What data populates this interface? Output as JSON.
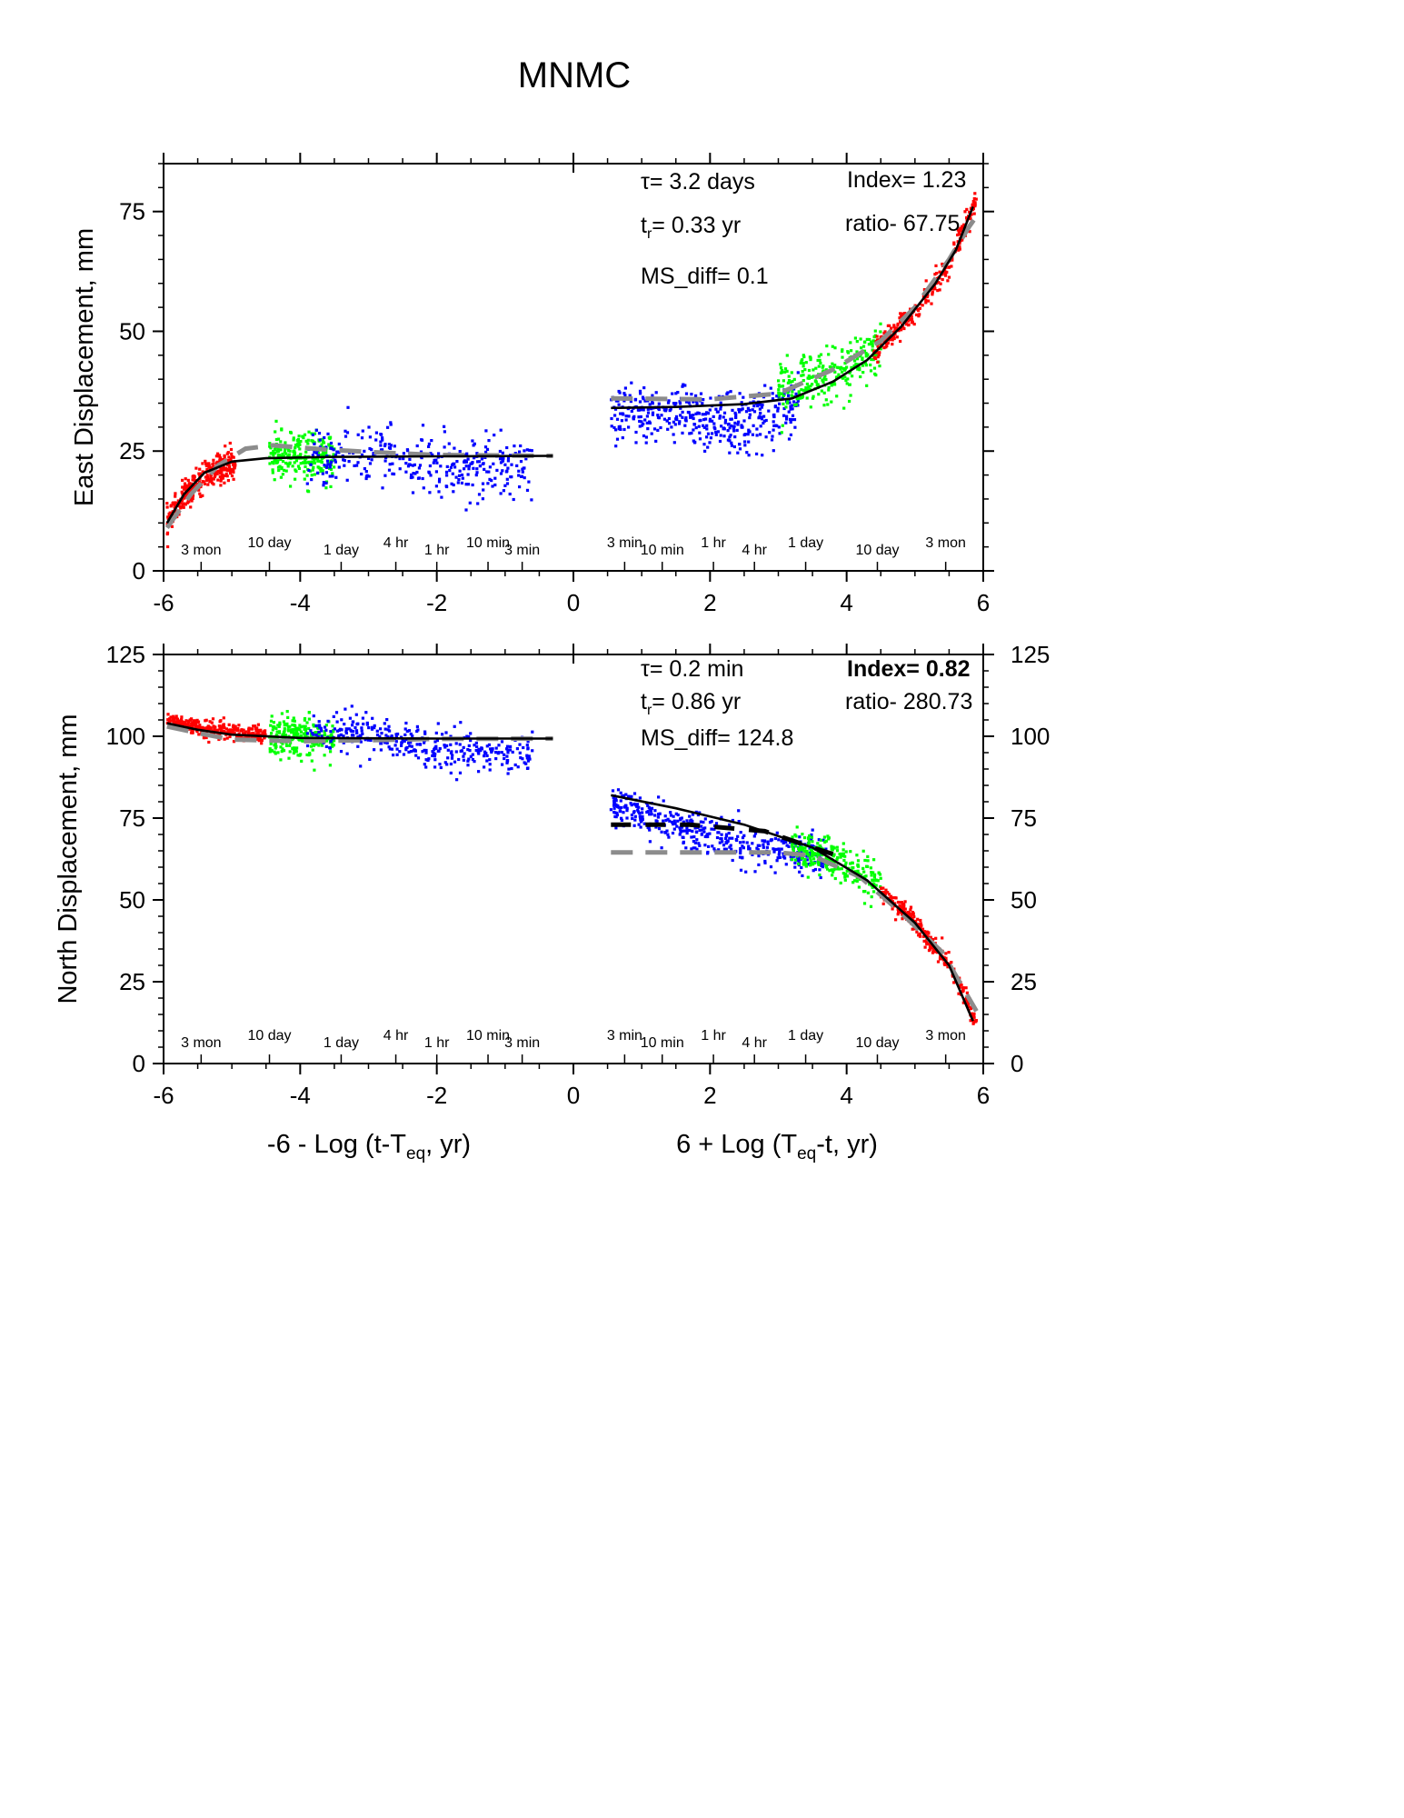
{
  "title": "MNMC",
  "colors": {
    "early": "#ff0000",
    "mid": "#00ff00",
    "late": "#0000ff",
    "fit": "#000000",
    "model": "#8c8c8c"
  },
  "time_labels_left": [
    {
      "x": -5.45,
      "text": "3 mon"
    },
    {
      "x": -4.45,
      "text": "10 day"
    },
    {
      "x": -3.4,
      "text": "1 day"
    },
    {
      "x": -2.6,
      "text": "4 hr"
    },
    {
      "x": -2.0,
      "text": "1 hr"
    },
    {
      "x": -1.25,
      "text": "10 min"
    },
    {
      "x": -0.75,
      "text": "3 min"
    }
  ],
  "time_labels_right": [
    {
      "x": 0.75,
      "text": "3 min"
    },
    {
      "x": 1.3,
      "text": "10 min"
    },
    {
      "x": 2.05,
      "text": "1 hr"
    },
    {
      "x": 2.65,
      "text": "4 hr"
    },
    {
      "x": 3.4,
      "text": "1 day"
    },
    {
      "x": 4.45,
      "text": "10 day"
    },
    {
      "x": 5.45,
      "text": "3 mon"
    }
  ],
  "chart_data": [
    {
      "type": "scatter",
      "panel": "east",
      "ylabel": "East Displacement, mm",
      "xlim": [
        -6,
        6
      ],
      "ylim": [
        0,
        85
      ],
      "xticks": [
        -6,
        -4,
        -2,
        0,
        2,
        4,
        6
      ],
      "yticks": [
        0,
        25,
        50,
        75
      ],
      "annotations": {
        "tau": "τ= 3.2 days",
        "tr": "t",
        "tr_sub": "r",
        "tr_value": "= 0.33 yr",
        "ms_diff": "MS_diff= 0.1",
        "index": "Index= 1.23",
        "ratio": "ratio- 67.75"
      },
      "fit_left": [
        [
          -5.95,
          10
        ],
        [
          -5.7,
          16
        ],
        [
          -5.4,
          20.5
        ],
        [
          -5.0,
          22.8
        ],
        [
          -4.5,
          23.5
        ],
        [
          -3.5,
          23.8
        ],
        [
          -2.0,
          23.9
        ],
        [
          -0.3,
          24
        ]
      ],
      "fit_right": [
        [
          0.55,
          34
        ],
        [
          1.5,
          34.2
        ],
        [
          2.5,
          34.8
        ],
        [
          3.2,
          36
        ],
        [
          3.8,
          39.5
        ],
        [
          4.3,
          44
        ],
        [
          4.8,
          51
        ],
        [
          5.3,
          60
        ],
        [
          5.6,
          67
        ],
        [
          5.85,
          76
        ]
      ],
      "model_left": [
        [
          -5.95,
          9
        ],
        [
          -5.6,
          16
        ],
        [
          -5.2,
          22
        ],
        [
          -4.8,
          25.5
        ],
        [
          -4.4,
          26.2
        ],
        [
          -3.8,
          25.5
        ],
        [
          -3.0,
          24.8
        ],
        [
          -2.0,
          24.2
        ],
        [
          -0.3,
          24
        ]
      ],
      "model_right": [
        [
          0.55,
          36
        ],
        [
          2.0,
          35.8
        ],
        [
          3.0,
          37
        ],
        [
          3.8,
          42
        ],
        [
          4.5,
          48
        ],
        [
          5.0,
          55
        ],
        [
          5.5,
          65
        ],
        [
          5.8,
          72
        ],
        [
          5.95,
          75
        ]
      ],
      "scatter_clusters": [
        {
          "side": "left",
          "group": "early",
          "x": [
            -5.95,
            -4.95
          ],
          "center": [
            [
              -5.95,
              10
            ],
            [
              -5.7,
              15.5
            ],
            [
              -5.4,
              20
            ],
            [
              -5.0,
              22.5
            ]
          ],
          "spread": 1.5,
          "count": 320
        },
        {
          "side": "left",
          "group": "mid",
          "x": [
            -4.45,
            -3.5
          ],
          "center": [
            [
              -4.45,
              23.5
            ],
            [
              -3.5,
              24
            ]
          ],
          "spread": 2.5,
          "count": 240
        },
        {
          "side": "left",
          "group": "late",
          "x": [
            -3.9,
            -0.6
          ],
          "center": [
            [
              -3.9,
              24
            ],
            [
              -3.0,
              24
            ],
            [
              -2.0,
              22
            ],
            [
              -0.6,
              21.5
            ]
          ],
          "spread": 3.2,
          "count": 340
        },
        {
          "side": "right",
          "group": "late",
          "x": [
            0.55,
            3.3
          ],
          "center": [
            [
              0.55,
              33
            ],
            [
              1.5,
              32.5
            ],
            [
              2.4,
              30
            ],
            [
              3.3,
              35
            ]
          ],
          "spread": 3.0,
          "count": 420
        },
        {
          "side": "right",
          "group": "mid",
          "x": [
            3.0,
            4.5
          ],
          "center": [
            [
              3.0,
              38
            ],
            [
              3.8,
              41
            ],
            [
              4.5,
              46
            ]
          ],
          "spread": 2.8,
          "count": 260
        },
        {
          "side": "right",
          "group": "early",
          "x": [
            4.4,
            5.9
          ],
          "center": [
            [
              4.4,
              46
            ],
            [
              5.0,
              54
            ],
            [
              5.5,
              64
            ],
            [
              5.9,
              77
            ]
          ],
          "spread": 1.3,
          "count": 260
        }
      ]
    },
    {
      "type": "scatter",
      "panel": "north",
      "ylabel": "North Displacement, mm",
      "xlim": [
        -6,
        6
      ],
      "ylim": [
        0,
        125
      ],
      "xticks": [
        -6,
        -4,
        -2,
        0,
        2,
        4,
        6
      ],
      "yticks": [
        0,
        25,
        50,
        75,
        100,
        125
      ],
      "xlabel_left": "-6 - Log (t-T",
      "xlabel_left_sub": "eq",
      "xlabel_left_end": ", yr)",
      "xlabel_right": "6 + Log (T",
      "xlabel_right_sub": "eq",
      "xlabel_right_end": "-t, yr)",
      "annotations": {
        "tau": "τ= 0.2 min",
        "tr": "t",
        "tr_sub": "r",
        "tr_value": "= 0.86 yr",
        "ms_diff": "MS_diff= 124.8",
        "index": "Index= 0.82",
        "ratio": "ratio- 280.73"
      },
      "fit_left": [
        [
          -5.95,
          104
        ],
        [
          -5.5,
          102
        ],
        [
          -5.0,
          100.5
        ],
        [
          -4.0,
          99.5
        ],
        [
          -3.0,
          99.4
        ],
        [
          -2.0,
          99.3
        ],
        [
          -0.3,
          99.3
        ]
      ],
      "fit_right": [
        [
          0.55,
          82
        ],
        [
          1.5,
          78
        ],
        [
          2.5,
          73
        ],
        [
          3.5,
          66
        ],
        [
          4.3,
          56
        ],
        [
          5.0,
          43
        ],
        [
          5.5,
          30
        ],
        [
          5.85,
          13
        ]
      ],
      "model_left": [
        [
          -5.95,
          103
        ],
        [
          -5.5,
          101
        ],
        [
          -5.0,
          99
        ],
        [
          -4.0,
          98.5
        ],
        [
          -3.0,
          98.8
        ],
        [
          -2.0,
          99.2
        ],
        [
          -0.3,
          99.3
        ]
      ],
      "model_right": [
        [
          0.55,
          64.5
        ],
        [
          3.0,
          64.5
        ],
        [
          3.5,
          63.5
        ],
        [
          4.2,
          57
        ],
        [
          4.8,
          46
        ],
        [
          5.4,
          34
        ],
        [
          5.9,
          16
        ]
      ],
      "model_black_right": [
        [
          0.55,
          73
        ],
        [
          1.7,
          73
        ],
        [
          2.8,
          71
        ],
        [
          3.5,
          66
        ],
        [
          3.8,
          64
        ]
      ],
      "scatter_clusters": [
        {
          "side": "left",
          "group": "early",
          "x": [
            -5.95,
            -4.5
          ],
          "center": [
            [
              -5.95,
              105
            ],
            [
              -5.5,
              102.5
            ],
            [
              -4.5,
              100
            ]
          ],
          "spread": 1.3,
          "count": 300
        },
        {
          "side": "left",
          "group": "mid",
          "x": [
            -4.45,
            -3.5
          ],
          "center": [
            [
              -4.45,
              101
            ],
            [
              -3.5,
              99
            ]
          ],
          "spread": 3.0,
          "count": 240
        },
        {
          "side": "left",
          "group": "late",
          "x": [
            -3.9,
            -0.6
          ],
          "center": [
            [
              -3.9,
              101
            ],
            [
              -3.0,
              101
            ],
            [
              -2.0,
              96
            ],
            [
              -0.6,
              95
            ]
          ],
          "spread": 3.0,
          "count": 340
        },
        {
          "side": "right",
          "group": "late",
          "x": [
            0.55,
            3.7
          ],
          "center": [
            [
              0.55,
              79
            ],
            [
              1.5,
              73
            ],
            [
              2.5,
              66
            ],
            [
              3.7,
              63
            ]
          ],
          "spread": 3.0,
          "count": 420
        },
        {
          "side": "right",
          "group": "mid",
          "x": [
            3.2,
            4.5
          ],
          "center": [
            [
              3.2,
              66
            ],
            [
              3.8,
              62
            ],
            [
              4.5,
              56
            ]
          ],
          "spread": 3.0,
          "count": 260
        },
        {
          "side": "right",
          "group": "early",
          "x": [
            4.5,
            5.9
          ],
          "center": [
            [
              4.5,
              53
            ],
            [
              5.0,
              43
            ],
            [
              5.5,
              30
            ],
            [
              5.9,
              13
            ]
          ],
          "spread": 1.5,
          "count": 260
        }
      ]
    }
  ]
}
